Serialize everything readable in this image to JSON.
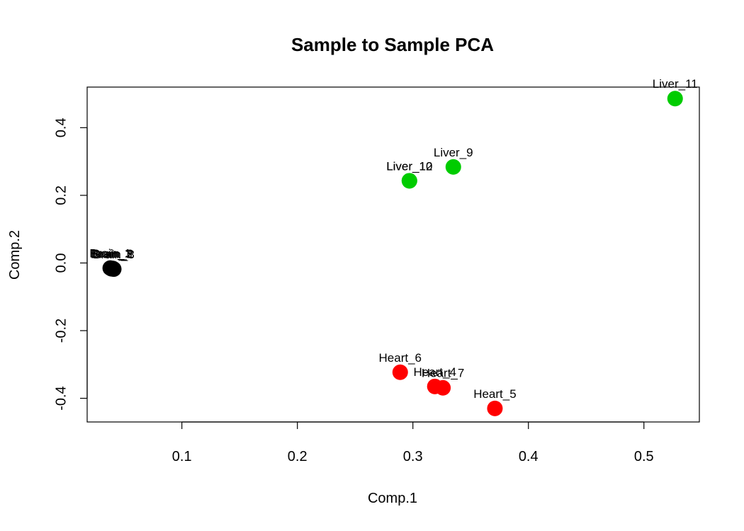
{
  "chart_data": {
    "type": "scatter",
    "title": "Sample to Sample PCA",
    "xlabel": "Comp.1",
    "ylabel": "Comp.2",
    "xlim": [
      0.018,
      0.548
    ],
    "ylim": [
      -0.47,
      0.52
    ],
    "xticks": [
      0.1,
      0.2,
      0.3,
      0.4,
      0.5
    ],
    "yticks": [
      -0.4,
      -0.2,
      0.0,
      0.2,
      0.4
    ],
    "xtick_labels": [
      "0.1",
      "0.2",
      "0.3",
      "0.4",
      "0.5"
    ],
    "ytick_labels": [
      "-0.4",
      "-0.2",
      "0.0",
      "0.2",
      "0.4"
    ],
    "grid": false,
    "legend": "none",
    "colors": {
      "Brain": "#000000",
      "Liver": "#00cc00",
      "Heart": "#ff0000"
    },
    "points": [
      {
        "label": "Brain_1",
        "group": "Brain",
        "x": 0.038,
        "y": -0.015
      },
      {
        "label": "Brain_2",
        "group": "Brain",
        "x": 0.04,
        "y": -0.016
      },
      {
        "label": "Brain_3",
        "group": "Brain",
        "x": 0.039,
        "y": -0.017
      },
      {
        "label": "Brain_8",
        "group": "Brain",
        "x": 0.041,
        "y": -0.018
      },
      {
        "label": "Liver_10",
        "group": "Liver",
        "x": 0.297,
        "y": 0.243
      },
      {
        "label": "Liver_12",
        "group": "Liver",
        "x": 0.297,
        "y": 0.243
      },
      {
        "label": "Liver_9",
        "group": "Liver",
        "x": 0.335,
        "y": 0.284
      },
      {
        "label": "Liver_11",
        "group": "Liver",
        "x": 0.527,
        "y": 0.486
      },
      {
        "label": "Heart_6",
        "group": "Heart",
        "x": 0.289,
        "y": -0.323
      },
      {
        "label": "Heart_4",
        "group": "Heart",
        "x": 0.319,
        "y": -0.365
      },
      {
        "label": "Heart_7",
        "group": "Heart",
        "x": 0.326,
        "y": -0.369
      },
      {
        "label": "Heart_5",
        "group": "Heart",
        "x": 0.371,
        "y": -0.43
      }
    ]
  }
}
